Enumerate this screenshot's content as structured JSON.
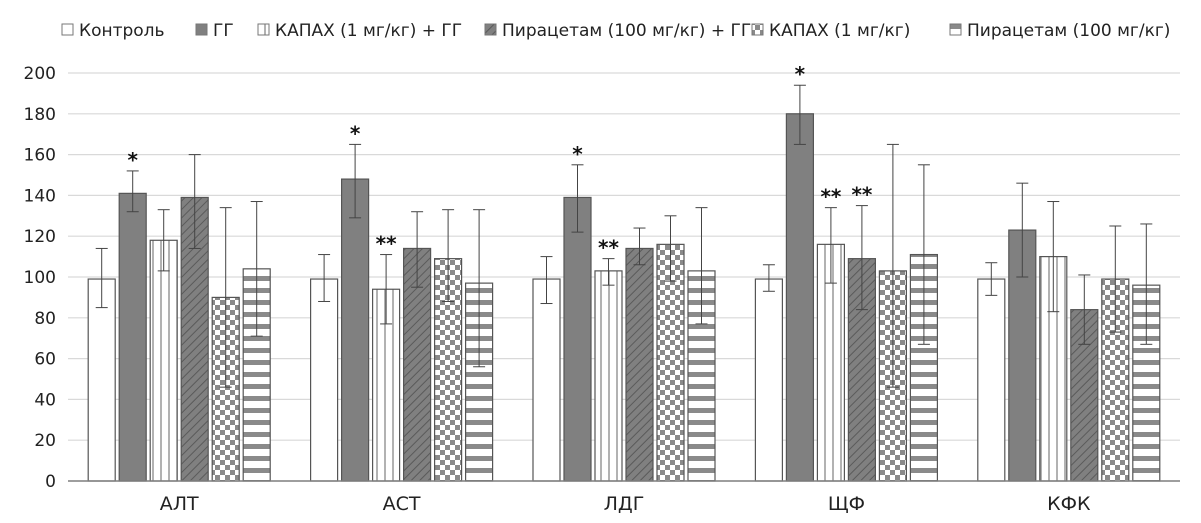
{
  "chart_data": {
    "type": "bar",
    "title": "",
    "xlabel": "",
    "ylabel": "",
    "ylim": [
      0,
      200
    ],
    "yticks": [
      0,
      20,
      40,
      60,
      80,
      100,
      120,
      140,
      160,
      180,
      200
    ],
    "grid": true,
    "legend_position": "top",
    "categories": [
      "АЛТ",
      "АСТ",
      "ЛДГ",
      "ЩФ",
      "КФК"
    ],
    "series": [
      {
        "name": "Контроль",
        "pattern": "none",
        "values": [
          99,
          99,
          99,
          99,
          99
        ],
        "error_low": [
          85,
          88,
          87,
          93,
          91
        ],
        "error_high": [
          114,
          111,
          110,
          106,
          107
        ],
        "annotations": [
          "",
          "",
          "",
          "",
          ""
        ]
      },
      {
        "name": "ГГ",
        "pattern": "solid",
        "values": [
          141,
          148,
          139,
          180,
          123
        ],
        "error_low": [
          132,
          129,
          122,
          165,
          100
        ],
        "error_high": [
          152,
          165,
          155,
          194,
          146
        ],
        "annotations": [
          "*",
          "*",
          "*",
          "*",
          ""
        ]
      },
      {
        "name": "КАПАХ (1 мг/кг) + ГГ",
        "pattern": "vertical",
        "values": [
          118,
          94,
          103,
          116,
          110
        ],
        "error_low": [
          103,
          77,
          96,
          97,
          83
        ],
        "error_high": [
          133,
          111,
          109,
          134,
          137
        ],
        "annotations": [
          "",
          "**",
          "**",
          "**",
          ""
        ]
      },
      {
        "name": "Пирацетам (100 мг/кг) + ГГ",
        "pattern": "diagonal",
        "values": [
          139,
          114,
          114,
          109,
          84
        ],
        "error_low": [
          114,
          95,
          106,
          84,
          67
        ],
        "error_high": [
          160,
          132,
          124,
          135,
          101
        ],
        "annotations": [
          "",
          "",
          "",
          "**",
          ""
        ]
      },
      {
        "name": "КАПАХ (1 мг/кг)",
        "pattern": "checker",
        "values": [
          90,
          109,
          116,
          103,
          99
        ],
        "error_low": [
          46,
          88,
          98,
          46,
          73
        ],
        "error_high": [
          134,
          133,
          130,
          165,
          125
        ],
        "annotations": [
          "",
          "",
          "",
          "",
          ""
        ]
      },
      {
        "name": "Пирацетам (100 мг/кг)",
        "pattern": "horizontal",
        "values": [
          104,
          97,
          103,
          111,
          96
        ],
        "error_low": [
          71,
          56,
          77,
          67,
          67
        ],
        "error_high": [
          137,
          133,
          134,
          155,
          126
        ],
        "annotations": [
          "",
          "",
          "",
          "",
          ""
        ]
      }
    ],
    "colors": {
      "bar_fill_dark": "#808080",
      "bar_outline": "#555555",
      "gridline": "#d9d9d9",
      "axis": "#7f7f7f",
      "error_bar": "#444444"
    }
  }
}
